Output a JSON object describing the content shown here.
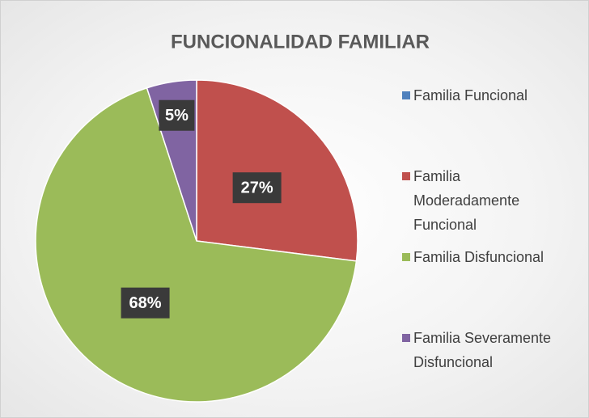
{
  "chart_data": {
    "type": "pie",
    "title": "FUNCIONALIDAD FAMILIAR",
    "categories": [
      "Familia Funcional",
      "Familia Moderadamente Funcional",
      "Familia Disfuncional",
      "Familia Severamente Disfuncional"
    ],
    "values": [
      0,
      27,
      68,
      5
    ],
    "value_labels": [
      null,
      "27%",
      "68%",
      "5%"
    ],
    "colors": [
      "#4f81bd",
      "#c0504d",
      "#9bbb59",
      "#8064a2"
    ],
    "legend": "right"
  }
}
